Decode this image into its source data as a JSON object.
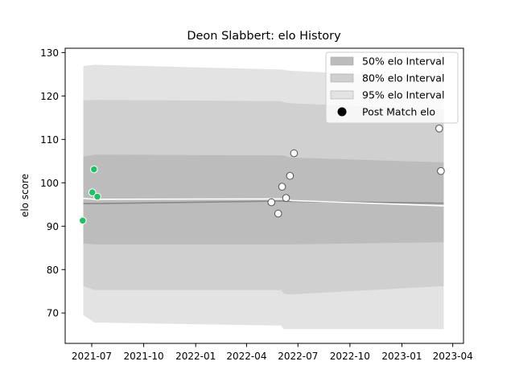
{
  "chart_data": {
    "type": "area",
    "title": "Deon Slabbert: elo History",
    "xlabel": "",
    "ylabel": "elo score",
    "xlim": [
      "2021-05-15",
      "2023-04-20"
    ],
    "ylim": [
      63,
      131
    ],
    "x_ticks": [
      "2021-07-01",
      "2021-10-01",
      "2022-01-01",
      "2022-04-01",
      "2022-07-01",
      "2022-10-01",
      "2023-01-01",
      "2023-04-01"
    ],
    "x_tick_labels": [
      "2021-07",
      "2021-10",
      "2022-01",
      "2022-04",
      "2022-07",
      "2022-10",
      "2023-01",
      "2023-04"
    ],
    "y_ticks": [
      70,
      80,
      90,
      100,
      110,
      120,
      130
    ],
    "band_dates": [
      "2021-06-16",
      "2021-07-06",
      "2022-06-01",
      "2022-06-06",
      "2022-06-12",
      "2022-06-21",
      "2023-03-16"
    ],
    "bands": [
      {
        "name": "95% elo Interval",
        "color": "#e3e3e3",
        "upper": [
          126.9,
          127.2,
          126.1,
          126.0,
          125.9,
          125.8,
          124.1
        ],
        "lower": [
          69.5,
          67.8,
          67.1,
          66.3,
          66.3,
          66.3,
          66.3
        ]
      },
      {
        "name": "80% elo Interval",
        "color": "#d0d0d0",
        "upper": [
          119.0,
          119.1,
          118.8,
          118.6,
          118.4,
          118.3,
          116.8
        ],
        "lower": [
          76.2,
          75.3,
          75.3,
          74.5,
          74.3,
          74.3,
          76.2
        ]
      },
      {
        "name": "50% elo Interval",
        "color": "#bcbcbc",
        "upper": [
          106.0,
          106.5,
          106.3,
          106.3,
          106.0,
          105.8,
          104.7
        ],
        "lower": [
          86.0,
          85.8,
          85.8,
          85.8,
          85.8,
          85.8,
          86.3
        ]
      }
    ],
    "mean_line": {
      "color": "#888888",
      "dates": [
        "2021-06-16",
        "2021-07-06",
        "2022-06-01",
        "2022-06-21",
        "2023-03-16"
      ],
      "values": [
        95.2,
        95.2,
        95.8,
        95.7,
        95.3
      ]
    },
    "median_line": {
      "color": "#ffffff",
      "dates": [
        "2021-06-16",
        "2021-07-06",
        "2022-06-01",
        "2022-06-21",
        "2023-03-16"
      ],
      "values": [
        96.4,
        96.2,
        96.3,
        95.9,
        94.7
      ]
    },
    "series": [
      {
        "name": "Post Match elo",
        "marker": "circle",
        "points": [
          {
            "x": "2021-06-15",
            "y": 91.3,
            "color": "#21c065"
          },
          {
            "x": "2021-07-02",
            "y": 97.8,
            "color": "#21c065"
          },
          {
            "x": "2021-07-05",
            "y": 103.1,
            "color": "#21c065"
          },
          {
            "x": "2021-07-11",
            "y": 96.8,
            "color": "#21c065"
          },
          {
            "x": "2022-05-15",
            "y": 95.5,
            "color": "#ffffff"
          },
          {
            "x": "2022-05-27",
            "y": 92.9,
            "color": "#ffffff"
          },
          {
            "x": "2022-06-03",
            "y": 99.1,
            "color": "#ffffff"
          },
          {
            "x": "2022-06-10",
            "y": 96.5,
            "color": "#ffffff"
          },
          {
            "x": "2022-06-17",
            "y": 101.6,
            "color": "#ffffff"
          },
          {
            "x": "2022-06-24",
            "y": 106.8,
            "color": "#ffffff"
          },
          {
            "x": "2023-03-08",
            "y": 112.5,
            "color": "#ffffff"
          },
          {
            "x": "2023-03-11",
            "y": 102.7,
            "color": "#ffffff"
          }
        ]
      }
    ],
    "legend": {
      "placement": "top-right",
      "entries": [
        {
          "label": "50% elo Interval",
          "kind": "patch",
          "color": "#bcbcbc"
        },
        {
          "label": "80% elo Interval",
          "kind": "patch",
          "color": "#d0d0d0"
        },
        {
          "label": "95% elo Interval",
          "kind": "patch",
          "color": "#e3e3e3"
        },
        {
          "label": "Post Match elo",
          "kind": "marker",
          "color": "#000000"
        }
      ]
    },
    "grid": false
  }
}
